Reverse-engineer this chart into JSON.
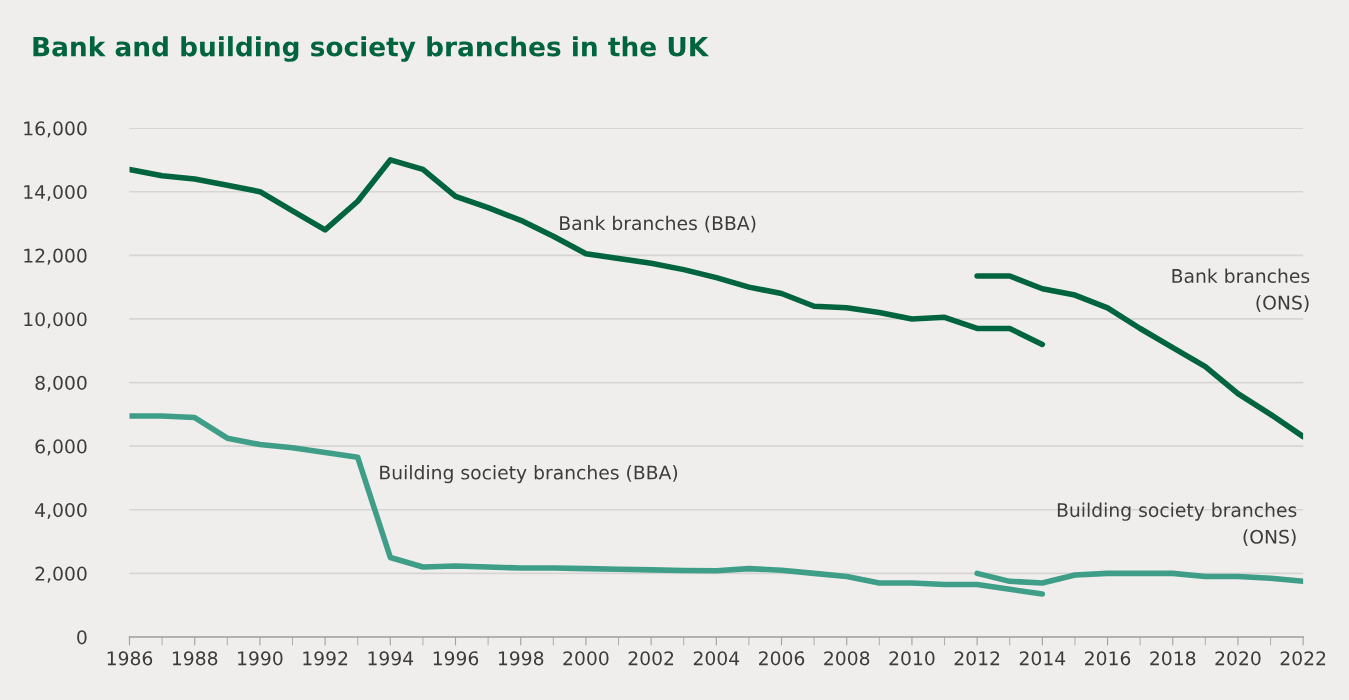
{
  "chart_data": {
    "type": "line",
    "title": "Bank and building society branches in the UK",
    "xlim": [
      1986,
      2022
    ],
    "xticks": [
      1986,
      1988,
      1990,
      1992,
      1994,
      1996,
      1998,
      2000,
      2002,
      2004,
      2006,
      2008,
      2010,
      2012,
      2014,
      2016,
      2018,
      2020,
      2022
    ],
    "ylim": [
      0,
      16000
    ],
    "yticks": [
      {
        "value": 0,
        "label": "0"
      },
      {
        "value": 2000,
        "label": "2,000"
      },
      {
        "value": 4000,
        "label": "4,000"
      },
      {
        "value": 6000,
        "label": "6,000"
      },
      {
        "value": 8000,
        "label": "8,000"
      },
      {
        "value": 10000,
        "label": "10,000"
      },
      {
        "value": 12000,
        "label": "12,000"
      },
      {
        "value": 14000,
        "label": "14,000"
      },
      {
        "value": 16000,
        "label": "16,000"
      }
    ],
    "grid": "y",
    "legend": false,
    "series": [
      {
        "name": "Bank branches (BBA)",
        "color": "#00643f",
        "x": [
          1986,
          1987,
          1988,
          1989,
          1990,
          1991,
          1992,
          1993,
          1994,
          1995,
          1996,
          1997,
          1998,
          1999,
          2000,
          2001,
          2002,
          2003,
          2004,
          2005,
          2006,
          2007,
          2008,
          2009,
          2010,
          2011,
          2012,
          2013,
          2014
        ],
        "values": [
          14700,
          14500,
          14400,
          14200,
          14000,
          13400,
          12800,
          13700,
          15000,
          14700,
          13850,
          13500,
          13100,
          12600,
          12050,
          11900,
          11750,
          11550,
          11300,
          11000,
          10800,
          10400,
          10350,
          10200,
          10000,
          10050,
          9700,
          9700,
          9200
        ]
      },
      {
        "name": "Bank branches\n(ONS)",
        "color": "#00643f",
        "x": [
          2012,
          2013,
          2014,
          2015,
          2016,
          2017,
          2018,
          2019,
          2020,
          2021,
          2022
        ],
        "values": [
          11350,
          11350,
          10950,
          10750,
          10350,
          9700,
          9100,
          8500,
          7650,
          7000,
          6300
        ]
      },
      {
        "name": "Building society branches (BBA)",
        "color": "#3f9e87",
        "x": [
          1986,
          1987,
          1988,
          1989,
          1990,
          1991,
          1992,
          1993,
          1994,
          1995,
          1996,
          1997,
          1998,
          1999,
          2000,
          2001,
          2002,
          2003,
          2004,
          2005,
          2006,
          2007,
          2008,
          2009,
          2010,
          2011,
          2012,
          2013,
          2014
        ],
        "values": [
          6950,
          6950,
          6900,
          6250,
          6050,
          5950,
          5800,
          5650,
          2500,
          2200,
          2230,
          2200,
          2170,
          2170,
          2150,
          2130,
          2110,
          2090,
          2080,
          2150,
          2100,
          2000,
          1900,
          1700,
          1700,
          1650,
          1650,
          1500,
          1350
        ]
      },
      {
        "name": "Building society branches\n(ONS)",
        "color": "#3f9e87",
        "x": [
          2012,
          2013,
          2014,
          2015,
          2016,
          2017,
          2018,
          2019,
          2020,
          2021,
          2022
        ],
        "values": [
          2000,
          1750,
          1700,
          1950,
          2000,
          2000,
          2000,
          1900,
          1900,
          1850,
          1750
        ]
      }
    ]
  }
}
